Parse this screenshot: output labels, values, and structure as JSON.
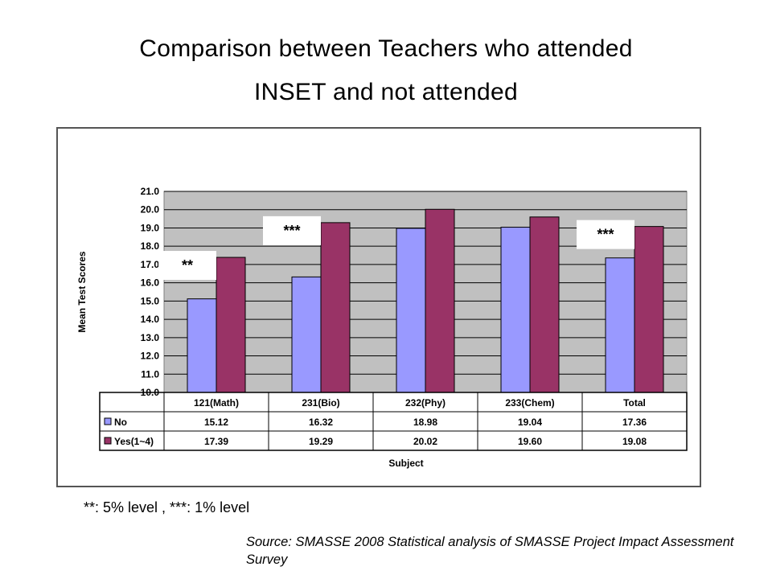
{
  "slide": {
    "title_line1": "Comparison between Teachers who attended",
    "title_line2": "INSET and not attended",
    "footnote": "**: 5% level , ***: 1% level",
    "source": "Source: SMASSE 2008 Statistical analysis of SMASSE Project Impact Assessment Survey"
  },
  "colors": {
    "no": "#9999ff",
    "yes": "#993366",
    "plot_bg": "#c0c0c0",
    "grid": "#000000"
  },
  "chart_data": {
    "type": "bar",
    "title": "",
    "xlabel": "Subject",
    "ylabel": "Mean Test Scores",
    "ylim": [
      10.0,
      21.0
    ],
    "yticks": [
      "10.0",
      "11.0",
      "12.0",
      "13.0",
      "14.0",
      "15.0",
      "16.0",
      "17.0",
      "18.0",
      "19.0",
      "20.0",
      "21.0"
    ],
    "grid": true,
    "categories": [
      "121(Math)",
      "231(Bio)",
      "232(Phy)",
      "233(Chem)",
      "Total"
    ],
    "series": [
      {
        "name": "No",
        "values": [
          15.12,
          16.32,
          18.98,
          19.04,
          17.36
        ],
        "labels": [
          "15.12",
          "16.32",
          "18.98",
          "19.04",
          "17.36"
        ]
      },
      {
        "name": "Yes(1~4)",
        "values": [
          17.39,
          19.29,
          20.02,
          19.6,
          19.08
        ],
        "labels": [
          "17.39",
          "19.29",
          "20.02",
          "19.60",
          "19.08"
        ]
      }
    ],
    "annotations": [
      {
        "category": "121(Math)",
        "text": "**"
      },
      {
        "category": "231(Bio)",
        "text": "***"
      },
      {
        "category": "Total",
        "text": "***"
      }
    ],
    "data_table": true
  }
}
